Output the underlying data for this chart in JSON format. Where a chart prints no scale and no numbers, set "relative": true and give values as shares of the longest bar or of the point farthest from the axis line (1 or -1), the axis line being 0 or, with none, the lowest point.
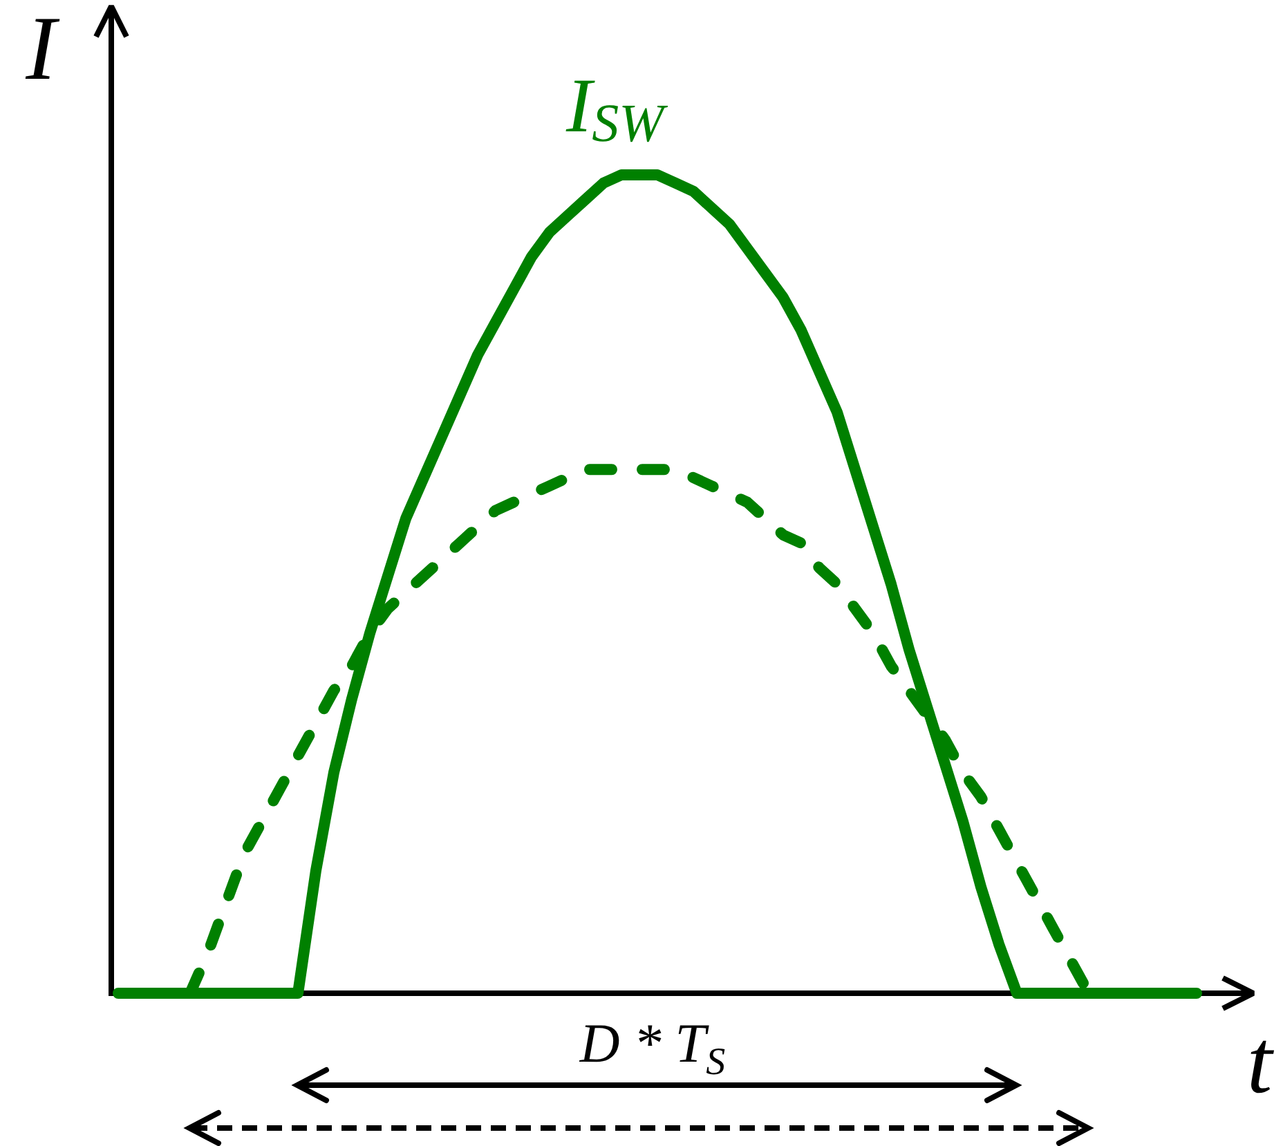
{
  "chart_data": {
    "type": "line",
    "xlabel": "t",
    "ylabel": "I",
    "relative": true,
    "categories": [
      null,
      null,
      null,
      null,
      null,
      null,
      null,
      null,
      null,
      null,
      null,
      null,
      null,
      null,
      null,
      null,
      null,
      null,
      null,
      null,
      null,
      null,
      null,
      null,
      null,
      null,
      null,
      null,
      null,
      null,
      null,
      null,
      null,
      null,
      null,
      null,
      null,
      null,
      null,
      null,
      null,
      null,
      null,
      null,
      null,
      null,
      null,
      null,
      null,
      null,
      null,
      null,
      null,
      null,
      null,
      null,
      null,
      null,
      null,
      null,
      null
    ],
    "series": [
      {
        "name": "I$_{SW}$",
        "color": "#008000",
        "line_style": "solid",
        "values": [
          0,
          0,
          0,
          0,
          0,
          0,
          0,
          0,
          0,
          0,
          0,
          0.15,
          0.27,
          0.36,
          0.44,
          0.51,
          0.58,
          0.63,
          0.68,
          0.73,
          0.78,
          0.82,
          0.86,
          0.9,
          0.93,
          0.95,
          0.97,
          0.99,
          1,
          1,
          1,
          0.99,
          0.98,
          0.96,
          0.94,
          0.91,
          0.88,
          0.85,
          0.81,
          0.76,
          0.71,
          0.64,
          0.57,
          0.5,
          0.42,
          0.35,
          0.28,
          0.21,
          0.13,
          0.06,
          0,
          0,
          0,
          0,
          0,
          0,
          0,
          0,
          0,
          0,
          0
        ]
      },
      {
        "color": "#008000",
        "line_style": "dashed",
        "values": [
          null,
          null,
          null,
          null,
          0,
          0.05,
          0.11,
          0.17,
          0.21,
          0.25,
          0.29,
          0.33,
          0.37,
          0.4,
          0.44,
          0.47,
          0.49,
          0.51,
          0.53,
          0.55,
          0.57,
          0.59,
          0.6,
          0.61,
          0.62,
          0.63,
          0.64,
          0.64,
          0.64,
          0.64,
          0.64,
          0.64,
          0.63,
          0.62,
          0.61,
          0.6,
          0.58,
          0.56,
          0.55,
          0.52,
          0.5,
          0.47,
          0.44,
          0.4,
          0.37,
          0.34,
          0.31,
          0.27,
          0.24,
          0.2,
          0.16,
          0.12,
          0.08,
          0.04,
          0,
          null,
          null,
          null,
          null,
          null,
          null
        ]
      }
    ],
    "annotations": [
      "D * T$_{S}$"
    ]
  }
}
